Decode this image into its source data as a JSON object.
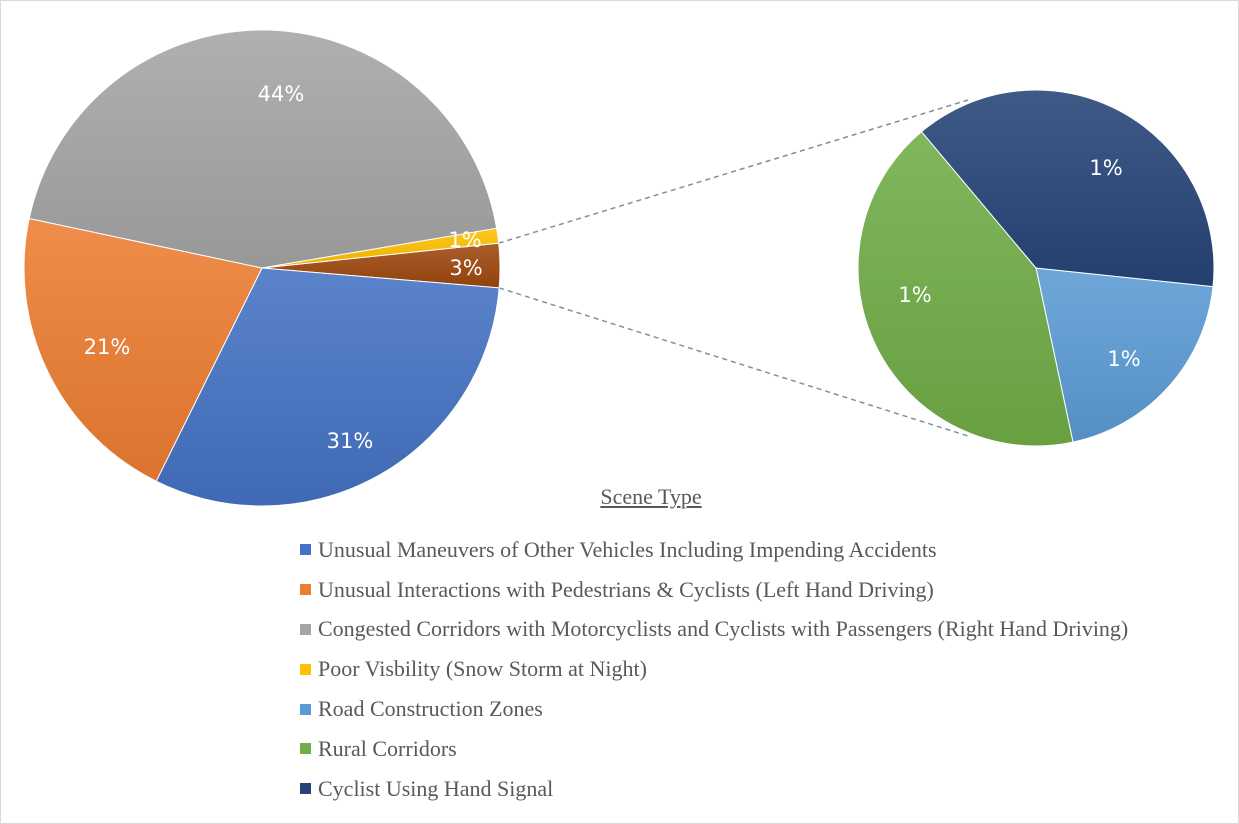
{
  "chart_data": {
    "type": "pie",
    "subtype": "pie-of-pie",
    "legend_title": "Scene Type",
    "legend_position": "bottom-right",
    "slices": [
      {
        "name": "Unusual Maneuvers of Other Vehicles Including Impending Accidents",
        "label": "31%",
        "value": 31,
        "color": "#4472c4"
      },
      {
        "name": "Unusual Interactions with Pedestrians & Cyclists (Left Hand Driving)",
        "label": "21%",
        "value": 21,
        "color": "#ed7d31"
      },
      {
        "name": "Congested Corridors with Motorcyclists and Cyclists with Passengers (Right Hand Driving)",
        "label": "44%",
        "value": 44,
        "color": "#a5a5a5"
      },
      {
        "name": "Poor Visbility (Snow Storm at Night)",
        "label": "1%",
        "value": 1,
        "color": "#ffc000"
      },
      {
        "name": "Road Construction Zones",
        "label": "1%",
        "value": 1,
        "color": "#5b9bd5",
        "in_secondary_pie": true
      },
      {
        "name": "Rural Corridors",
        "label": "1%",
        "value": 1,
        "color": "#70ad47",
        "in_secondary_pie": true
      },
      {
        "name": "Cyclist Using Hand Signal",
        "label": "1%",
        "value": 1,
        "color": "#264478",
        "in_secondary_pie": true
      }
    ],
    "combined_slice": {
      "label": "3%",
      "value": 3,
      "color": "#9e480e"
    }
  }
}
